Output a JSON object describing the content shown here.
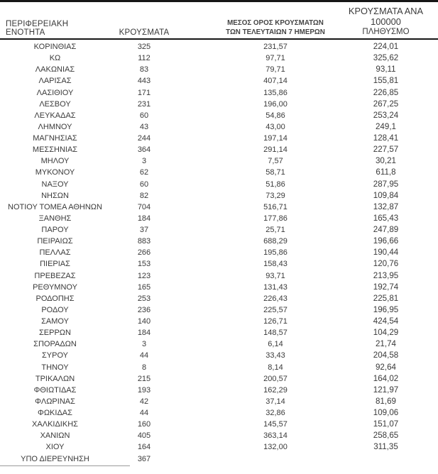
{
  "table": {
    "headers": {
      "col1": "ΠΕΡΙΦΕΡΕΙΑΚΗ ΕΝΟΤΗΤΑ",
      "col2": "ΚΡΟΥΣΜΑΤΑ",
      "col3_line1": "ΜΕΣΟΣ ΟΡΟΣ ΚΡΟΥΣΜΑΤΩΝ",
      "col3_line2": "ΤΩΝ ΤΕΛΕΥΤΑΙΩΝ 7 ΗΜΕΡΩΝ",
      "col4_line1": "ΚΡΟΥΣΜΑΤΑ ΑΝΑ 100000",
      "col4_line2": "ΠΛΗΘΥΣΜΟ"
    },
    "rows": [
      [
        "ΚΟΡΙΝΘΙΑΣ",
        "325",
        "231,57",
        "224,01"
      ],
      [
        "ΚΩ",
        "112",
        "97,71",
        "325,62"
      ],
      [
        "ΛΑΚΩΝΙΑΣ",
        "83",
        "79,71",
        "93,11"
      ],
      [
        "ΛΑΡΙΣΑΣ",
        "443",
        "407,14",
        "155,81"
      ],
      [
        "ΛΑΣΙΘΙΟΥ",
        "171",
        "135,86",
        "226,85"
      ],
      [
        "ΛΕΣΒΟΥ",
        "231",
        "196,00",
        "267,25"
      ],
      [
        "ΛΕΥΚΑΔΑΣ",
        "60",
        "54,86",
        "253,24"
      ],
      [
        "ΛΗΜΝΟΥ",
        "43",
        "43,00",
        "249,1"
      ],
      [
        "ΜΑΓΝΗΣΙΑΣ",
        "244",
        "197,14",
        "128,41"
      ],
      [
        "ΜΕΣΣΗΝΙΑΣ",
        "364",
        "291,14",
        "227,57"
      ],
      [
        "ΜΗΛΟΥ",
        "3",
        "7,57",
        "30,21"
      ],
      [
        "ΜΥΚΟΝΟΥ",
        "62",
        "58,71",
        "611,8"
      ],
      [
        "ΝΑΞΟΥ",
        "60",
        "51,86",
        "287,95"
      ],
      [
        "ΝΗΣΩΝ",
        "82",
        "73,29",
        "109,84"
      ],
      [
        "ΝΟΤΙΟΥ ΤΟΜΕΑ ΑΘΗΝΩΝ",
        "704",
        "516,71",
        "132,87"
      ],
      [
        "ΞΑΝΘΗΣ",
        "184",
        "177,86",
        "165,43"
      ],
      [
        "ΠΑΡΟΥ",
        "37",
        "25,71",
        "247,89"
      ],
      [
        "ΠΕΙΡΑΙΩΣ",
        "883",
        "688,29",
        "196,66"
      ],
      [
        "ΠΕΛΛΑΣ",
        "266",
        "195,86",
        "190,44"
      ],
      [
        "ΠΙΕΡΙΑΣ",
        "153",
        "158,43",
        "120,76"
      ],
      [
        "ΠΡΕΒΕΖΑΣ",
        "123",
        "93,71",
        "213,95"
      ],
      [
        "ΡΕΘΥΜΝΟΥ",
        "165",
        "131,43",
        "192,74"
      ],
      [
        "ΡΟΔΟΠΗΣ",
        "253",
        "226,43",
        "225,81"
      ],
      [
        "ΡΟΔΟΥ",
        "236",
        "225,57",
        "196,95"
      ],
      [
        "ΣΑΜΟΥ",
        "140",
        "126,71",
        "424,54"
      ],
      [
        "ΣΕΡΡΩΝ",
        "184",
        "148,57",
        "104,29"
      ],
      [
        "ΣΠΟΡΑΔΩΝ",
        "3",
        "6,14",
        "21,74"
      ],
      [
        "ΣΥΡΟΥ",
        "44",
        "33,43",
        "204,58"
      ],
      [
        "ΤΗΝΟΥ",
        "8",
        "8,14",
        "92,64"
      ],
      [
        "ΤΡΙΚΑΛΩΝ",
        "215",
        "200,57",
        "164,02"
      ],
      [
        "ΦΘΙΩΤΙΔΑΣ",
        "193",
        "162,29",
        "121,97"
      ],
      [
        "ΦΛΩΡΙΝΑΣ",
        "42",
        "37,14",
        "81,69"
      ],
      [
        "ΦΩΚΙΔΑΣ",
        "44",
        "32,86",
        "109,06"
      ],
      [
        "ΧΑΛΚΙΔΙΚΗΣ",
        "160",
        "145,57",
        "151,07"
      ],
      [
        "ΧΑΝΙΩΝ",
        "405",
        "363,14",
        "258,65"
      ],
      [
        "ΧΙΟΥ",
        "164",
        "132,00",
        "311,35"
      ],
      [
        "ΥΠΟ ΔΙΕΡΕΥΝΗΣΗ",
        "367",
        "",
        ""
      ]
    ]
  },
  "colors": {
    "text": "#3a3a3a",
    "rule": "#161616",
    "partial_rule": "#9a9a9a",
    "background": "#ffffff"
  }
}
